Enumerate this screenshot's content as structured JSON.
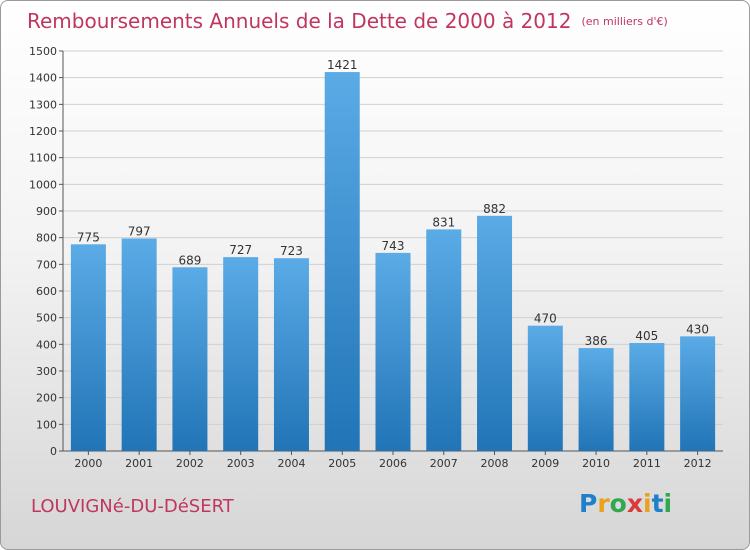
{
  "header": {
    "title": "Remboursements Annuels de la Dette de 2000 à 2012",
    "unit": "(en milliers d'€)"
  },
  "footer": {
    "town": "LOUVIGNé-DU-DéSERT",
    "logo_text": "Proxiti"
  },
  "colors": {
    "title": "#c0365f",
    "bar_top": "#5aabe6",
    "bar_bottom": "#2174b6"
  },
  "chart_data": {
    "type": "bar",
    "title": "Remboursements Annuels de la Dette de 2000 à 2012",
    "categories": [
      "2000",
      "2001",
      "2002",
      "2003",
      "2004",
      "2005",
      "2006",
      "2007",
      "2008",
      "2009",
      "2010",
      "2011",
      "2012"
    ],
    "values": [
      775,
      797,
      689,
      727,
      723,
      1421,
      743,
      831,
      882,
      470,
      386,
      405,
      430
    ],
    "ylim": [
      0,
      1500
    ],
    "yticks": [
      0,
      100,
      200,
      300,
      400,
      500,
      600,
      700,
      800,
      900,
      1000,
      1100,
      1200,
      1300,
      1400,
      1500
    ],
    "grid": true,
    "xlabel": "",
    "ylabel": ""
  }
}
